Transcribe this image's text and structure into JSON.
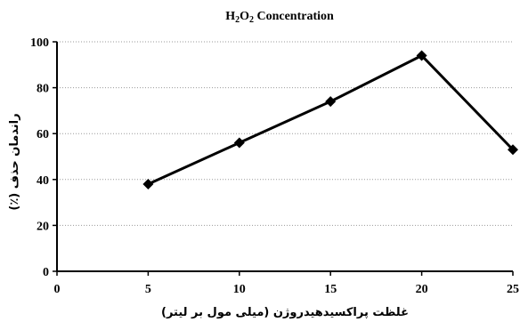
{
  "chart_data": {
    "type": "line",
    "title": "H2O2 Concentration",
    "title_parts": {
      "prefix": "H",
      "sub1": "2",
      "mid": "O",
      "sub2": "2",
      "suffix": " Concentration"
    },
    "xlabel": "غلظت پراکسیدهیدروژن (میلی مول بر لیتر)",
    "ylabel": "راندمان حذف (٪)",
    "xlim": [
      0,
      25
    ],
    "ylim": [
      0,
      100
    ],
    "x_ticks": [
      0,
      5,
      10,
      15,
      20,
      25
    ],
    "y_ticks": [
      0,
      20,
      40,
      60,
      80,
      100
    ],
    "grid": {
      "horizontal": true,
      "vertical": false,
      "style": "dotted"
    },
    "legend": "none",
    "series": [
      {
        "marker": "diamond",
        "color": "#000000",
        "x": [
          5,
          10,
          15,
          20,
          25
        ],
        "y": [
          38,
          56,
          74,
          94,
          53
        ]
      }
    ]
  }
}
